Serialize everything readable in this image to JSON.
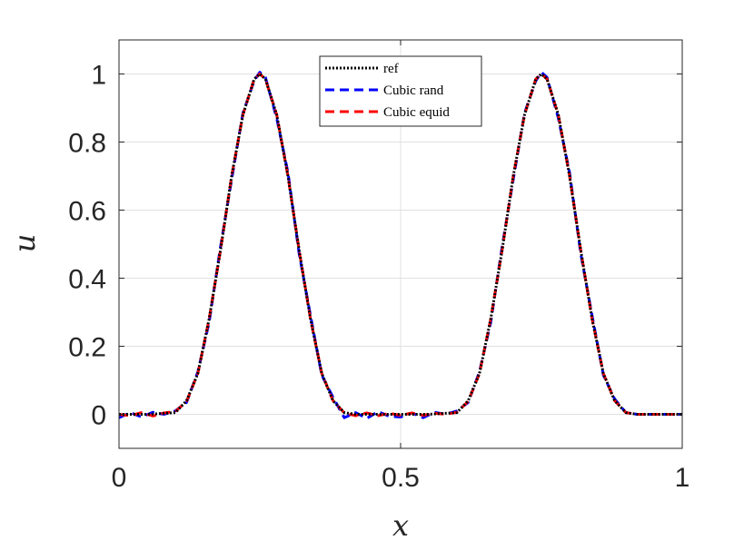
{
  "chart_data": {
    "type": "line",
    "title": "",
    "xlabel": "x",
    "ylabel": "u",
    "xlim": [
      0,
      1
    ],
    "ylim": [
      -0.1,
      1.1
    ],
    "grid": true,
    "legend_position": "top-center",
    "x_ticks": [
      {
        "value": 0,
        "label": "0"
      },
      {
        "value": 0.5,
        "label": "0.5"
      },
      {
        "value": 1,
        "label": "1"
      }
    ],
    "y_ticks": [
      {
        "value": 0,
        "label": "0"
      },
      {
        "value": 0.2,
        "label": "0.2"
      },
      {
        "value": 0.4,
        "label": "0.4"
      },
      {
        "value": 0.6,
        "label": "0.6"
      },
      {
        "value": 0.8,
        "label": "0.8"
      },
      {
        "value": 1,
        "label": "1"
      }
    ],
    "series": [
      {
        "name": "ref",
        "color": "#000000",
        "style": "dotted",
        "x": [
          0,
          0.05,
          0.1,
          0.12,
          0.14,
          0.16,
          0.18,
          0.2,
          0.22,
          0.24,
          0.25,
          0.26,
          0.28,
          0.3,
          0.32,
          0.34,
          0.36,
          0.38,
          0.4,
          0.42,
          0.45,
          0.5,
          0.55,
          0.6,
          0.62,
          0.64,
          0.66,
          0.68,
          0.7,
          0.72,
          0.74,
          0.75,
          0.76,
          0.78,
          0.8,
          0.82,
          0.84,
          0.86,
          0.88,
          0.9,
          0.92,
          0.95,
          1.0
        ],
        "y": [
          0,
          0,
          0.005,
          0.04,
          0.12,
          0.28,
          0.48,
          0.7,
          0.88,
          0.985,
          1.0,
          0.985,
          0.88,
          0.7,
          0.48,
          0.28,
          0.12,
          0.04,
          0.005,
          0,
          0,
          0,
          0,
          0.005,
          0.04,
          0.12,
          0.28,
          0.48,
          0.7,
          0.88,
          0.985,
          1.0,
          0.985,
          0.88,
          0.7,
          0.48,
          0.28,
          0.12,
          0.04,
          0.005,
          0,
          0,
          0
        ]
      },
      {
        "name": "Cubic rand",
        "color": "#0000ff",
        "style": "dashed",
        "x": [
          0,
          0.02,
          0.04,
          0.06,
          0.08,
          0.1,
          0.12,
          0.14,
          0.16,
          0.18,
          0.2,
          0.22,
          0.24,
          0.25,
          0.26,
          0.28,
          0.3,
          0.32,
          0.34,
          0.36,
          0.38,
          0.4,
          0.42,
          0.44,
          0.46,
          0.48,
          0.5,
          0.52,
          0.54,
          0.56,
          0.58,
          0.6,
          0.62,
          0.64,
          0.66,
          0.68,
          0.7,
          0.72,
          0.74,
          0.75,
          0.76,
          0.78,
          0.8,
          0.82,
          0.84,
          0.86,
          0.88,
          0.9,
          0.92,
          0.94,
          0.96,
          0.98,
          1.0
        ],
        "y": [
          -0.01,
          0.005,
          -0.008,
          0.006,
          0.0,
          0.01,
          0.035,
          0.125,
          0.27,
          0.49,
          0.69,
          0.885,
          0.98,
          1.005,
          0.99,
          0.87,
          0.71,
          0.47,
          0.29,
          0.115,
          0.05,
          -0.01,
          0.005,
          -0.012,
          0.008,
          -0.006,
          -0.008,
          0.004,
          -0.01,
          0.006,
          0.0,
          0.01,
          0.035,
          0.125,
          0.27,
          0.49,
          0.69,
          0.885,
          0.98,
          1.005,
          0.99,
          0.87,
          0.71,
          0.47,
          0.29,
          0.115,
          0.045,
          0.005,
          0.0,
          0.0,
          0.0,
          0.0,
          0.0
        ]
      },
      {
        "name": "Cubic equid",
        "color": "#ff0000",
        "style": "dashed",
        "x": [
          0,
          0.02,
          0.04,
          0.06,
          0.08,
          0.1,
          0.12,
          0.14,
          0.16,
          0.18,
          0.2,
          0.22,
          0.24,
          0.25,
          0.26,
          0.28,
          0.3,
          0.32,
          0.34,
          0.36,
          0.38,
          0.4,
          0.42,
          0.44,
          0.46,
          0.48,
          0.5,
          0.52,
          0.54,
          0.56,
          0.58,
          0.6,
          0.62,
          0.64,
          0.66,
          0.68,
          0.7,
          0.72,
          0.74,
          0.75,
          0.76,
          0.78,
          0.8,
          0.82,
          0.84,
          0.86,
          0.88,
          0.9,
          0.92,
          0.94,
          0.96,
          0.98,
          1.0
        ],
        "y": [
          0.0,
          -0.004,
          0.005,
          -0.005,
          0.004,
          0.008,
          0.038,
          0.12,
          0.28,
          0.48,
          0.7,
          0.88,
          0.985,
          1.0,
          0.985,
          0.88,
          0.7,
          0.48,
          0.28,
          0.12,
          0.04,
          0.004,
          -0.004,
          0.004,
          -0.004,
          0.003,
          -0.003,
          0.004,
          -0.003,
          0.003,
          0.0,
          0.006,
          0.038,
          0.12,
          0.28,
          0.48,
          0.7,
          0.88,
          0.985,
          1.0,
          0.985,
          0.88,
          0.7,
          0.48,
          0.28,
          0.12,
          0.04,
          0.005,
          0.0,
          0.0,
          0.0,
          0.0,
          0.0
        ]
      }
    ]
  }
}
